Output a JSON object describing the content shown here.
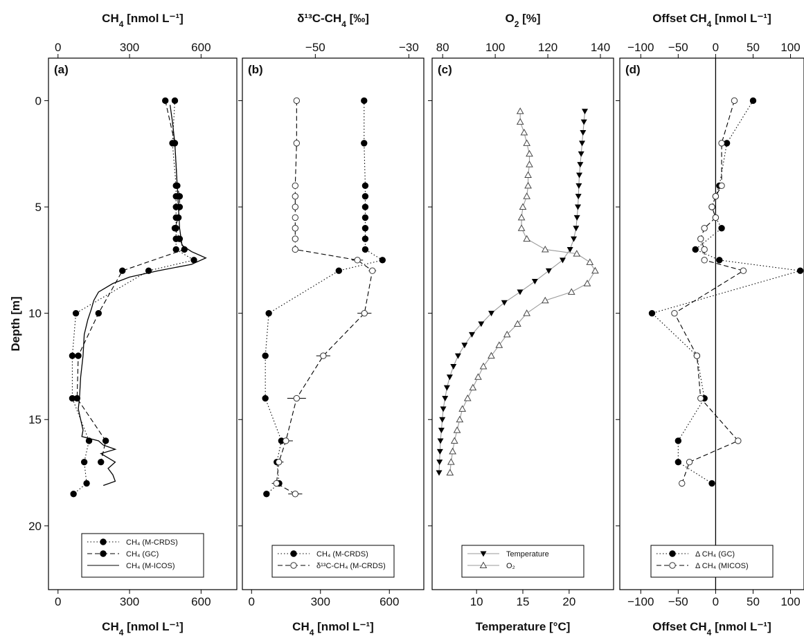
{
  "figure": {
    "y_axis_label": "Depth [m]",
    "y_ticks": [
      0,
      5,
      10,
      15,
      20
    ],
    "ylim": [
      -2,
      23
    ]
  },
  "chart_data": [
    {
      "type": "line",
      "panel": "(a)",
      "top_axis": {
        "label_main": "CH",
        "label_sub": "4",
        "label_rest": " [nmol L⁻¹]",
        "range": [
          -40,
          750
        ],
        "ticks": [
          0,
          300,
          600
        ]
      },
      "bottom_axis": {
        "label_main": "CH",
        "label_sub": "4",
        "label_rest": " [nmol L⁻¹]",
        "range": [
          -40,
          750
        ],
        "ticks": [
          0,
          300,
          600
        ]
      },
      "series": [
        {
          "name": "CH₄ (M-CRDS)",
          "axis": "top",
          "style": "dotted",
          "marker": "filled-circle",
          "points": [
            [
              490,
              0
            ],
            [
              480,
              2
            ],
            [
              495,
              4
            ],
            [
              495,
              4.5
            ],
            [
              495,
              5
            ],
            [
              495,
              5.5
            ],
            [
              495,
              6
            ],
            [
              495,
              6.5
            ],
            [
              495,
              7
            ],
            [
              570,
              7.5
            ],
            [
              380,
              8
            ],
            [
              75,
              10
            ],
            [
              60,
              12
            ],
            [
              60,
              14
            ],
            [
              130,
              16
            ],
            [
              110,
              17
            ],
            [
              120,
              18
            ],
            [
              65,
              18.5
            ]
          ]
        },
        {
          "name": "CH₄ (GC)",
          "axis": "top",
          "style": "dashed",
          "marker": "filled-circle",
          "points": [
            [
              450,
              0
            ],
            [
              490,
              2
            ],
            [
              500,
              4
            ],
            [
              510,
              4.5
            ],
            [
              510,
              5
            ],
            [
              505,
              5.5
            ],
            [
              490,
              6
            ],
            [
              510,
              6.5
            ],
            [
              530,
              7
            ],
            [
              270,
              8
            ],
            [
              170,
              10
            ],
            [
              85,
              12
            ],
            [
              80,
              14
            ],
            [
              200,
              16
            ],
            [
              180,
              17
            ]
          ]
        },
        {
          "name": "CH₄ (M-ICOS)",
          "axis": "top",
          "style": "solid",
          "marker": "none",
          "points": [
            [
              470,
              0.2
            ],
            [
              480,
              1
            ],
            [
              490,
              2
            ],
            [
              495,
              3
            ],
            [
              500,
              4
            ],
            [
              505,
              5
            ],
            [
              510,
              6
            ],
            [
              520,
              6.8
            ],
            [
              560,
              7.1
            ],
            [
              620,
              7.4
            ],
            [
              560,
              7.7
            ],
            [
              420,
              8
            ],
            [
              300,
              8.3
            ],
            [
              230,
              8.6
            ],
            [
              170,
              9
            ],
            [
              150,
              9.4
            ],
            [
              140,
              9.8
            ],
            [
              125,
              10.3
            ],
            [
              110,
              11
            ],
            [
              105,
              12
            ],
            [
              95,
              13
            ],
            [
              90,
              14
            ],
            [
              85,
              14.5
            ],
            [
              95,
              15
            ],
            [
              105,
              15.5
            ],
            [
              100,
              15.8
            ],
            [
              170,
              16
            ],
            [
              190,
              16.2
            ],
            [
              240,
              16.4
            ],
            [
              180,
              16.6
            ],
            [
              240,
              17
            ],
            [
              210,
              17.3
            ],
            [
              230,
              17.6
            ],
            [
              240,
              17.9
            ],
            [
              190,
              18.1
            ]
          ]
        }
      ],
      "legend": {
        "position": "bottom-center"
      }
    },
    {
      "type": "line",
      "panel": "(b)",
      "top_axis": {
        "label_main": "δ¹³C-CH",
        "label_sub": "4",
        "label_rest": " [‰]",
        "range": [
          -65.6,
          -26.8
        ],
        "ticks": [
          -50,
          -30
        ]
      },
      "bottom_axis": {
        "label_main": "CH",
        "label_sub": "4",
        "label_rest": " [nmol L⁻¹]",
        "range": [
          -40,
          750
        ],
        "ticks": [
          0,
          300,
          600
        ]
      },
      "series": [
        {
          "name": "CH₄ (M-CRDS)",
          "axis": "bottom",
          "style": "dotted",
          "marker": "filled-circle",
          "points": [
            [
              490,
              0
            ],
            [
              490,
              2
            ],
            [
              495,
              4
            ],
            [
              495,
              4.5
            ],
            [
              495,
              5
            ],
            [
              495,
              5.5
            ],
            [
              495,
              6
            ],
            [
              495,
              6.5
            ],
            [
              495,
              7
            ],
            [
              570,
              7.5
            ],
            [
              380,
              8
            ],
            [
              75,
              10
            ],
            [
              60,
              12
            ],
            [
              60,
              14
            ],
            [
              130,
              16
            ],
            [
              110,
              17
            ],
            [
              120,
              18
            ],
            [
              65,
              18.5
            ]
          ]
        },
        {
          "name": "δ¹³C-CH₄ (M-CRDS)",
          "axis": "top",
          "style": "dashed",
          "marker": "open-circle",
          "error_bars": true,
          "points": [
            [
              -54,
              0,
              0.5
            ],
            [
              -54,
              2,
              0.5
            ],
            [
              -54.3,
              4,
              0.5
            ],
            [
              -54.3,
              4.5,
              0.5
            ],
            [
              -54.3,
              5,
              0.5
            ],
            [
              -54.3,
              5.5,
              0.5
            ],
            [
              -54.3,
              6,
              0.5
            ],
            [
              -54.3,
              6.5,
              0.5
            ],
            [
              -54.3,
              7,
              0.5
            ],
            [
              -41,
              7.5,
              1.2
            ],
            [
              -37.8,
              8,
              0.8
            ],
            [
              -39.5,
              10,
              1.5
            ],
            [
              -48.3,
              12,
              1.5
            ],
            [
              -54,
              14,
              2
            ],
            [
              -56.3,
              16,
              1.5
            ],
            [
              -57.8,
              17,
              1
            ],
            [
              -58.3,
              18,
              1
            ],
            [
              -54.3,
              18.5,
              1.5
            ]
          ]
        }
      ],
      "legend": {
        "position": "bottom-center"
      }
    },
    {
      "type": "line",
      "panel": "(c)",
      "top_axis": {
        "label_main": "O",
        "label_sub": "2",
        "label_rest": " [%]",
        "range": [
          76,
          145
        ],
        "ticks": [
          80,
          100,
          120,
          140
        ]
      },
      "bottom_axis": {
        "label_main": "Temperature [°C]",
        "label_sub": "",
        "label_rest": "",
        "range": [
          5.2,
          24.8
        ],
        "ticks": [
          10,
          15,
          20
        ]
      },
      "series": [
        {
          "name": "Temperature",
          "axis": "bottom",
          "style": "solid",
          "marker": "filled-triangle-down",
          "points": [
            [
              21.7,
              0.5
            ],
            [
              21.6,
              1
            ],
            [
              21.5,
              1.5
            ],
            [
              21.4,
              2
            ],
            [
              21.3,
              2.5
            ],
            [
              21.2,
              3
            ],
            [
              21.1,
              3.5
            ],
            [
              21.05,
              4
            ],
            [
              21.0,
              4.5
            ],
            [
              20.95,
              5
            ],
            [
              20.85,
              5.5
            ],
            [
              20.75,
              6
            ],
            [
              20.5,
              6.5
            ],
            [
              20.1,
              7
            ],
            [
              19.3,
              7.5
            ],
            [
              17.8,
              8
            ],
            [
              16.3,
              8.5
            ],
            [
              14.7,
              9
            ],
            [
              13.0,
              9.5
            ],
            [
              11.6,
              10
            ],
            [
              10.5,
              10.5
            ],
            [
              9.5,
              11
            ],
            [
              8.7,
              11.5
            ],
            [
              8.0,
              12
            ],
            [
              7.5,
              12.5
            ],
            [
              7.1,
              13
            ],
            [
              6.8,
              13.5
            ],
            [
              6.6,
              14
            ],
            [
              6.4,
              14.5
            ],
            [
              6.3,
              15
            ],
            [
              6.2,
              15.5
            ],
            [
              6.1,
              16
            ],
            [
              6.05,
              16.5
            ],
            [
              6.0,
              17
            ],
            [
              5.95,
              17.5
            ]
          ]
        },
        {
          "name": "O₂",
          "axis": "top",
          "style": "solid",
          "marker": "open-triangle-up",
          "points": [
            [
              109.5,
              0.5
            ],
            [
              109.5,
              1
            ],
            [
              111,
              1.5
            ],
            [
              112,
              2
            ],
            [
              113,
              2.5
            ],
            [
              113,
              3
            ],
            [
              112.5,
              3.5
            ],
            [
              112.5,
              4
            ],
            [
              112,
              4.5
            ],
            [
              110.5,
              5
            ],
            [
              110,
              5.5
            ],
            [
              110,
              6
            ],
            [
              112,
              6.5
            ],
            [
              119,
              7
            ],
            [
              131,
              7.2
            ],
            [
              136,
              7.6
            ],
            [
              138,
              8
            ],
            [
              135,
              8.6
            ],
            [
              129,
              9
            ],
            [
              119,
              9.4
            ],
            [
              112,
              10
            ],
            [
              108.5,
              10.5
            ],
            [
              104.5,
              11
            ],
            [
              101.5,
              11.5
            ],
            [
              98.5,
              12
            ],
            [
              95.5,
              12.5
            ],
            [
              93.5,
              13
            ],
            [
              91.5,
              13.5
            ],
            [
              89.5,
              14
            ],
            [
              87.5,
              14.5
            ],
            [
              86.5,
              15
            ],
            [
              85.5,
              15.5
            ],
            [
              84.5,
              16
            ],
            [
              83.8,
              16.5
            ],
            [
              83.2,
              17
            ],
            [
              82.8,
              17.5
            ]
          ]
        }
      ],
      "legend": {
        "position": "bottom-center"
      }
    },
    {
      "type": "line",
      "panel": "(d)",
      "top_axis": {
        "label_main": "Offset CH",
        "label_sub": "4",
        "label_rest": " [nmol L⁻¹]",
        "range": [
          -128,
          118
        ],
        "ticks": [
          -100,
          -50,
          0,
          50,
          100
        ]
      },
      "bottom_axis": {
        "label_main": "Offset CH",
        "label_sub": "4",
        "label_rest": " [nmol L⁻¹]",
        "range": [
          -128,
          118
        ],
        "ticks": [
          -100,
          -50,
          0,
          50,
          100
        ]
      },
      "zero_line": 0,
      "series": [
        {
          "name": "Δ CH₄ (GC)",
          "axis": "top",
          "style": "dotted",
          "marker": "filled-circle",
          "points": [
            [
              50,
              0
            ],
            [
              15,
              2
            ],
            [
              5,
              4
            ],
            [
              0,
              4.5
            ],
            [
              -5,
              5
            ],
            [
              0,
              5.5
            ],
            [
              8,
              6
            ],
            [
              -27,
              7
            ],
            [
              5,
              7.5
            ],
            [
              113,
              8
            ],
            [
              -85,
              10
            ],
            [
              -25,
              12
            ],
            [
              -15,
              14
            ],
            [
              -50,
              16
            ],
            [
              -50,
              17
            ],
            [
              -5,
              18
            ]
          ]
        },
        {
          "name": "Δ CH₄ (MICOS)",
          "axis": "top",
          "style": "dashed",
          "marker": "open-circle",
          "points": [
            [
              25,
              0
            ],
            [
              8,
              2
            ],
            [
              8,
              4
            ],
            [
              0,
              4.5
            ],
            [
              -5,
              5
            ],
            [
              0,
              5.5
            ],
            [
              -15,
              6
            ],
            [
              -20,
              6.5
            ],
            [
              -15,
              7
            ],
            [
              -15,
              7.5
            ],
            [
              37,
              8
            ],
            [
              -55,
              10
            ],
            [
              -25,
              12
            ],
            [
              -20,
              14
            ],
            [
              30,
              16
            ],
            [
              -35,
              17
            ],
            [
              -45,
              18
            ]
          ]
        }
      ],
      "legend": {
        "position": "bottom-center"
      }
    }
  ]
}
